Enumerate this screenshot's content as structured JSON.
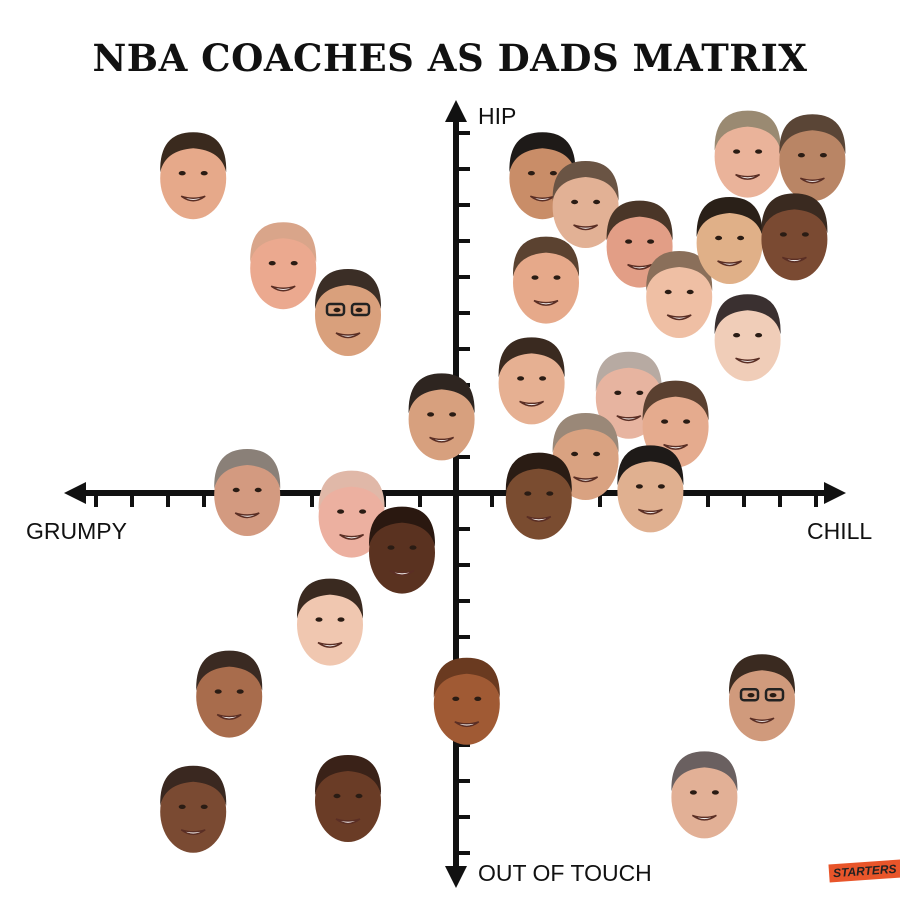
{
  "title": "NBA COACHES AS DADS MATRIX",
  "axes": {
    "top": "HIP",
    "bottom": "OUT OF TOUCH",
    "left": "GRUMPY",
    "right": "CHILL"
  },
  "logo": "STARTERS",
  "chart_data": {
    "type": "scatter",
    "xlabel_negative": "GRUMPY",
    "xlabel_positive": "CHILL",
    "ylabel_negative": "OUT OF TOUCH",
    "ylabel_positive": "HIP",
    "xlim": [
      -10.5,
      10.5
    ],
    "ylim": [
      -10.5,
      10.5
    ],
    "tick_labels": "none",
    "marker": "coach face photo",
    "points": [
      {
        "x": -7.3,
        "y": 8.8,
        "skin": "#e6a98a",
        "hair": "#3a2a1e"
      },
      {
        "x": -4.8,
        "y": 6.3,
        "skin": "#eba98f",
        "hair": "#d9a58a"
      },
      {
        "x": -3.0,
        "y": 5.0,
        "skin": "#d9a07c",
        "hair": "#3b2e26",
        "glasses": true
      },
      {
        "x": -0.4,
        "y": 2.1,
        "skin": "#d7a07e",
        "hair": "#2e2520"
      },
      {
        "x": 2.4,
        "y": 8.8,
        "skin": "#c98d68",
        "hair": "#1e1a18"
      },
      {
        "x": 3.6,
        "y": 8.0,
        "skin": "#e2b195",
        "hair": "#6a5444"
      },
      {
        "x": 5.1,
        "y": 6.9,
        "skin": "#e29e86",
        "hair": "#4a3628"
      },
      {
        "x": 2.5,
        "y": 5.9,
        "skin": "#e6a98a",
        "hair": "#5b4230"
      },
      {
        "x": 6.2,
        "y": 5.5,
        "skin": "#efbfa4",
        "hair": "#8a6f5a"
      },
      {
        "x": 8.1,
        "y": 9.4,
        "skin": "#eab39a",
        "hair": "#9a8a72"
      },
      {
        "x": 9.9,
        "y": 9.3,
        "skin": "#b98565",
        "hair": "#5a4536"
      },
      {
        "x": 7.6,
        "y": 7.0,
        "skin": "#e0b088",
        "hair": "#2a2018"
      },
      {
        "x": 9.4,
        "y": 7.1,
        "skin": "#7a4a32",
        "hair": "#3a2a20"
      },
      {
        "x": 8.1,
        "y": 4.3,
        "skin": "#f0cdb8",
        "hair": "#3a3030"
      },
      {
        "x": 2.1,
        "y": 3.1,
        "skin": "#e6b092",
        "hair": "#3a2a20"
      },
      {
        "x": 4.8,
        "y": 2.7,
        "skin": "#e7b4a0",
        "hair": "#b7aaa2"
      },
      {
        "x": 6.1,
        "y": 1.9,
        "skin": "#e5ab8e",
        "hair": "#5a4030"
      },
      {
        "x": 3.6,
        "y": 1.0,
        "skin": "#d9a281",
        "hair": "#9a8878"
      },
      {
        "x": 5.4,
        "y": 0.1,
        "skin": "#e0b090",
        "hair": "#1e1a18"
      },
      {
        "x": 2.3,
        "y": -0.1,
        "skin": "#7a4c30",
        "hair": "#2a1c14"
      },
      {
        "x": -5.8,
        "y": 0.0,
        "skin": "#d39a80",
        "hair": "#8a8078"
      },
      {
        "x": -2.9,
        "y": -0.6,
        "skin": "#ecb0a0",
        "hair": "#e0b8a8"
      },
      {
        "x": -1.5,
        "y": -1.6,
        "skin": "#5a3220",
        "hair": "#2a1810"
      },
      {
        "x": -3.5,
        "y": -3.6,
        "skin": "#f0c7b0",
        "hair": "#3a2a20"
      },
      {
        "x": -6.3,
        "y": -5.6,
        "skin": "#a86c4c",
        "hair": "#3a2a22"
      },
      {
        "x": 0.3,
        "y": -5.8,
        "skin": "#a05a34",
        "hair": "#6a3a20"
      },
      {
        "x": -7.3,
        "y": -8.8,
        "skin": "#7a4a32",
        "hair": "#3a2820"
      },
      {
        "x": -3.0,
        "y": -8.5,
        "skin": "#6a3c26",
        "hair": "#3a2218"
      },
      {
        "x": 8.5,
        "y": -5.7,
        "skin": "#d09a7c",
        "hair": "#3a2a20",
        "glasses": true
      },
      {
        "x": 6.9,
        "y": -8.4,
        "skin": "#e2b096",
        "hair": "#6a6060"
      }
    ]
  }
}
